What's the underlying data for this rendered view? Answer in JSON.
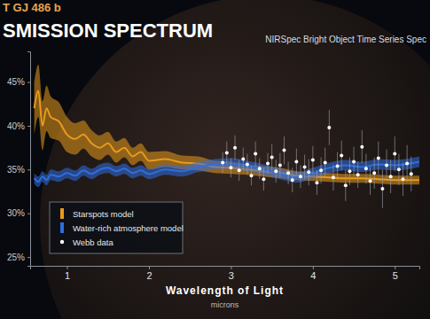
{
  "chart_data": {
    "type": "line",
    "subtitle": "T GJ 486 b",
    "title": "SMISSION SPECTRUM",
    "annotations": [
      "NIRSpec Bright Object Time Series Spec"
    ],
    "x_label": "Wavelength of Light",
    "x_units": "microns",
    "xlim": [
      0.55,
      5.3
    ],
    "xticks": [
      1,
      2,
      3,
      4,
      5
    ],
    "ylim": [
      24,
      48.5
    ],
    "yticks": [
      {
        "value": 25,
        "label": "25%"
      },
      {
        "value": 30,
        "label": "30%"
      },
      {
        "value": 35,
        "label": "35%"
      },
      {
        "value": 40,
        "label": "40%"
      },
      {
        "value": 45,
        "label": "45%"
      }
    ],
    "grid": false,
    "legend": "lower left",
    "series": [
      {
        "name": "Starspots model",
        "color": "#e89a1c",
        "type": "area",
        "x": [
          0.6,
          0.65,
          0.7,
          0.75,
          0.8,
          0.9,
          1.0,
          1.1,
          1.2,
          1.3,
          1.4,
          1.5,
          1.6,
          1.7,
          1.8,
          1.9,
          2.0,
          2.2,
          2.4,
          2.6,
          2.8,
          3.0,
          3.2,
          3.4,
          3.6,
          3.8,
          4.0,
          4.2,
          4.4,
          4.6,
          4.8,
          5.0,
          5.3
        ],
        "values": [
          42,
          44,
          40,
          42,
          41,
          40.5,
          39,
          38.5,
          39,
          38,
          37.5,
          38,
          37,
          37.5,
          36.5,
          37,
          36,
          36.2,
          35.8,
          35.7,
          35.3,
          35.2,
          35,
          34.8,
          34.6,
          34.3,
          34.2,
          34.1,
          34,
          34,
          33.9,
          33.8,
          33.8
        ],
        "lower": [
          39,
          41,
          37.2,
          39.4,
          38.6,
          38.3,
          37,
          36.7,
          37.4,
          36.5,
          36.1,
          36.7,
          35.8,
          36.4,
          35.5,
          36,
          35,
          35.3,
          35,
          34.9,
          34.6,
          34.5,
          34.4,
          34.2,
          34,
          33.8,
          33.7,
          33.6,
          33.5,
          33.5,
          33.4,
          33.3,
          33.3
        ],
        "upper": [
          45,
          47,
          42.8,
          44.6,
          43.4,
          42.7,
          41,
          40.3,
          40.6,
          39.5,
          38.9,
          39.3,
          38.2,
          38.6,
          37.5,
          38,
          37,
          37.1,
          36.6,
          36.5,
          36,
          35.9,
          35.6,
          35.4,
          35.2,
          34.8,
          34.7,
          34.6,
          34.5,
          34.5,
          34.4,
          34.3,
          34.3
        ]
      },
      {
        "name": "Water-rich atmosphere model",
        "color": "#2f6ee0",
        "type": "area",
        "x": [
          0.6,
          0.65,
          0.7,
          0.75,
          0.8,
          0.9,
          1.0,
          1.1,
          1.2,
          1.3,
          1.4,
          1.5,
          1.6,
          1.7,
          1.8,
          1.9,
          2.0,
          2.2,
          2.4,
          2.6,
          2.8,
          3.0,
          3.2,
          3.4,
          3.6,
          3.8,
          4.0,
          4.2,
          4.4,
          4.6,
          4.8,
          5.0,
          5.3
        ],
        "values": [
          34,
          33.6,
          34.2,
          33.8,
          34.4,
          34.2,
          34.6,
          34.3,
          34.9,
          34.5,
          35,
          35.2,
          34.8,
          35.1,
          34.6,
          34.9,
          34.5,
          35,
          34.8,
          35.3,
          35.6,
          35.7,
          35.4,
          35,
          34.5,
          34.1,
          34.6,
          35.2,
          35.5,
          35.3,
          35.6,
          35.5,
          35.9
        ],
        "lower": [
          33.4,
          33,
          33.6,
          33.2,
          33.8,
          33.6,
          34,
          33.7,
          34.3,
          33.9,
          34.4,
          34.6,
          34.2,
          34.5,
          34,
          34.3,
          33.9,
          34.4,
          34.2,
          34.7,
          35,
          35.1,
          34.8,
          34.4,
          33.9,
          33.5,
          34,
          34.6,
          34.9,
          34.7,
          35,
          34.9,
          35.3
        ],
        "upper": [
          34.6,
          34.2,
          34.8,
          34.4,
          35,
          34.8,
          35.2,
          34.9,
          35.5,
          35.1,
          35.6,
          35.8,
          35.4,
          35.7,
          35.2,
          35.5,
          35.1,
          35.6,
          35.4,
          35.9,
          36.2,
          36.3,
          36,
          35.6,
          35.1,
          34.7,
          35.2,
          35.8,
          36.1,
          35.9,
          36.2,
          36.1,
          36.5
        ]
      },
      {
        "name": "Webb data",
        "color": "#ffffff",
        "type": "scatter",
        "marker": "circle",
        "x": [
          2.9,
          2.95,
          3.0,
          3.05,
          3.1,
          3.15,
          3.2,
          3.25,
          3.3,
          3.35,
          3.4,
          3.45,
          3.5,
          3.55,
          3.6,
          3.65,
          3.7,
          3.75,
          3.8,
          3.85,
          3.9,
          3.95,
          4.0,
          4.05,
          4.1,
          4.15,
          4.2,
          4.25,
          4.3,
          4.35,
          4.4,
          4.45,
          4.5,
          4.55,
          4.6,
          4.65,
          4.7,
          4.75,
          4.8,
          4.85,
          4.9,
          4.95,
          5.0,
          5.05,
          5.1,
          5.15,
          5.2
        ],
        "values": [
          35.8,
          36.9,
          35.2,
          37.5,
          34.9,
          36.2,
          35.6,
          34.3,
          36.8,
          35.1,
          33.9,
          35.7,
          36.4,
          34.8,
          35.5,
          37.2,
          34.6,
          33.8,
          35.9,
          34.2,
          35.3,
          34.7,
          36.1,
          33.5,
          34.9,
          35.8,
          39.8,
          34.1,
          35.4,
          36.6,
          33.2,
          34.8,
          35.9,
          34.4,
          37.6,
          35.1,
          33.7,
          34.6,
          36.3,
          32.8,
          35.5,
          34.2,
          36.8,
          35,
          33.9,
          35.7,
          34.5
        ],
        "errors": [
          1.2,
          1.3,
          1.1,
          1.4,
          1.2,
          1.3,
          1.2,
          1.1,
          1.4,
          1.2,
          1.3,
          1.2,
          1.5,
          1.3,
          1.4,
          1.6,
          1.3,
          1.4,
          1.5,
          1.3,
          1.4,
          1.5,
          1.6,
          1.4,
          1.5,
          1.7,
          2.0,
          1.5,
          1.6,
          1.7,
          1.8,
          1.6,
          1.7,
          1.5,
          1.9,
          1.7,
          1.6,
          1.8,
          1.9,
          2.2,
          1.8,
          1.9,
          2.0,
          1.8,
          1.9,
          2.1,
          2.0
        ]
      }
    ]
  }
}
